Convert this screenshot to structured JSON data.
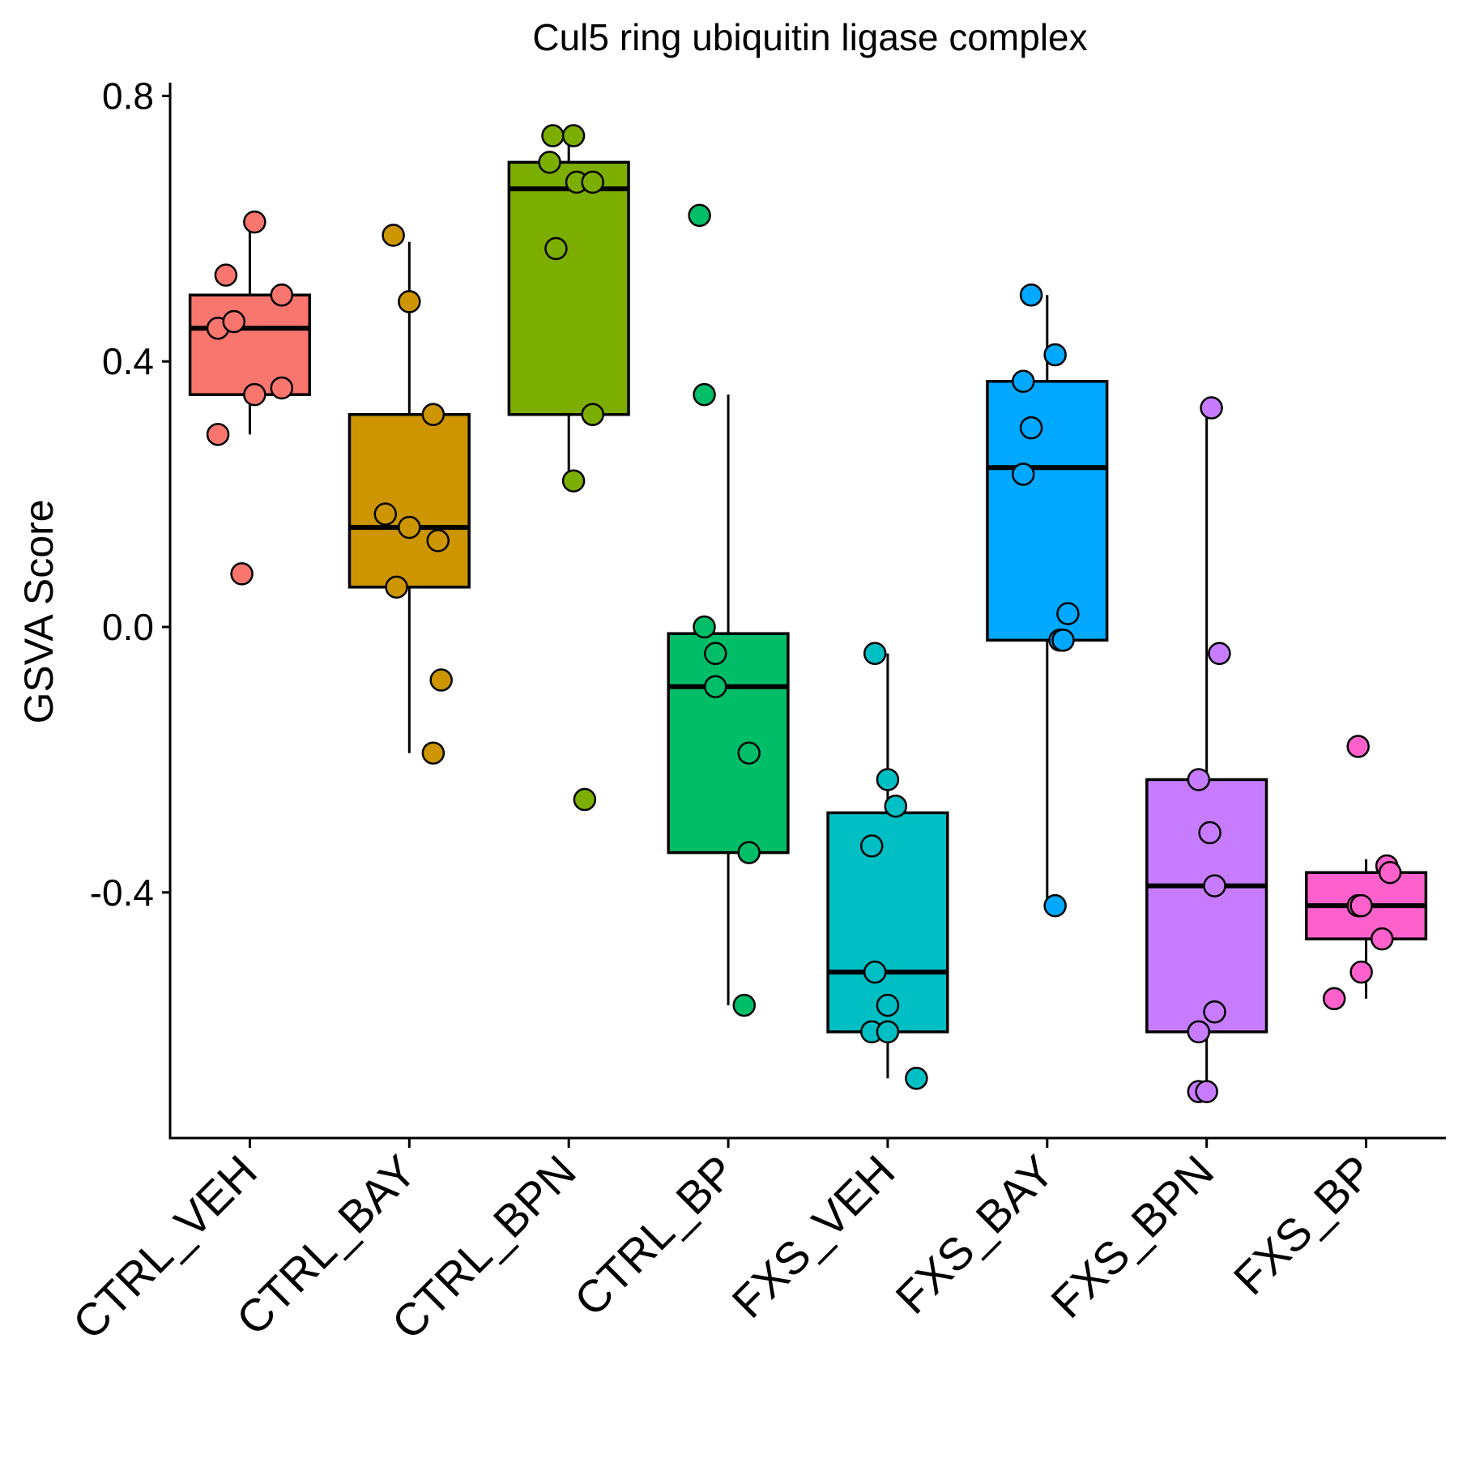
{
  "chart_data": {
    "type": "box",
    "title": "Cul5 ring ubiquitin ligase complex",
    "xlabel": "",
    "ylabel": "GSVA Score",
    "ylim": [
      -0.77,
      0.82
    ],
    "yticks": [
      -0.4,
      0.0,
      0.4,
      0.8
    ],
    "ytick_labels": [
      "-0.4",
      "0.0",
      "0.4",
      "0.8"
    ],
    "grid": false,
    "legend": "none",
    "categories": [
      "CTRL_VEH",
      "CTRL_BAY",
      "CTRL_BPN",
      "CTRL_BP",
      "FXS_VEH",
      "FXS_BAY",
      "FXS_BPN",
      "FXS_BP"
    ],
    "colors": [
      "#F8766D",
      "#CD9600",
      "#7CAE00",
      "#00BE67",
      "#00BFC4",
      "#00A9FF",
      "#C77CFF",
      "#FF61CC"
    ],
    "boxes": [
      {
        "q1": 0.35,
        "median": 0.45,
        "q3": 0.5,
        "whisker_low": 0.29,
        "whisker_high": 0.6
      },
      {
        "q1": 0.06,
        "median": 0.15,
        "q3": 0.32,
        "whisker_low": -0.19,
        "whisker_high": 0.58
      },
      {
        "q1": 0.32,
        "median": 0.66,
        "q3": 0.7,
        "whisker_low": 0.22,
        "whisker_high": 0.74
      },
      {
        "q1": -0.34,
        "median": -0.09,
        "q3": -0.01,
        "whisker_low": -0.57,
        "whisker_high": 0.35
      },
      {
        "q1": -0.61,
        "median": -0.52,
        "q3": -0.28,
        "whisker_low": -0.68,
        "whisker_high": -0.04
      },
      {
        "q1": -0.02,
        "median": 0.24,
        "q3": 0.37,
        "whisker_low": -0.42,
        "whisker_high": 0.5
      },
      {
        "q1": -0.61,
        "median": -0.39,
        "q3": -0.23,
        "whisker_low": -0.7,
        "whisker_high": 0.33
      },
      {
        "q1": -0.47,
        "median": -0.42,
        "q3": -0.37,
        "whisker_low": -0.56,
        "whisker_high": -0.35
      }
    ],
    "points": [
      {
        "offsets": [
          0.03,
          -0.15,
          0.2,
          -0.2,
          -0.1,
          -0.2,
          0.2,
          0.03,
          -0.05
        ],
        "values": [
          0.61,
          0.53,
          0.5,
          0.45,
          0.46,
          0.29,
          0.36,
          0.35,
          0.08
        ]
      },
      {
        "offsets": [
          -0.1,
          0.0,
          0.15,
          -0.15,
          0.0,
          0.18,
          -0.08,
          0.2,
          0.15
        ],
        "values": [
          0.59,
          0.49,
          0.32,
          0.17,
          0.15,
          0.13,
          0.06,
          -0.08,
          -0.19
        ]
      },
      {
        "offsets": [
          -0.1,
          0.03,
          -0.12,
          0.05,
          0.15,
          -0.08,
          0.15,
          0.03,
          0.1
        ],
        "values": [
          0.74,
          0.74,
          0.7,
          0.67,
          0.67,
          0.57,
          0.32,
          0.22,
          -0.26
        ]
      },
      {
        "offsets": [
          -0.18,
          -0.15,
          -0.15,
          -0.08,
          -0.08,
          0.13,
          0.13,
          0.1
        ],
        "values": [
          0.62,
          0.35,
          0.0,
          -0.04,
          -0.09,
          -0.19,
          -0.34,
          -0.57
        ]
      },
      {
        "offsets": [
          -0.08,
          0.0,
          0.05,
          -0.1,
          -0.08,
          0.0,
          -0.1,
          0.0,
          0.18
        ],
        "values": [
          -0.04,
          -0.23,
          -0.27,
          -0.33,
          -0.52,
          -0.57,
          -0.61,
          -0.61,
          -0.68
        ]
      },
      {
        "offsets": [
          -0.1,
          0.05,
          -0.15,
          -0.1,
          -0.15,
          0.13,
          0.08,
          0.1,
          0.05
        ],
        "values": [
          0.5,
          0.41,
          0.37,
          0.3,
          0.23,
          0.02,
          -0.02,
          -0.02,
          -0.42
        ]
      },
      {
        "offsets": [
          0.03,
          0.08,
          -0.05,
          0.02,
          0.05,
          0.05,
          -0.05,
          -0.05,
          0.0
        ],
        "values": [
          0.33,
          -0.04,
          -0.23,
          -0.31,
          -0.39,
          -0.58,
          -0.61,
          -0.7,
          -0.7
        ]
      },
      {
        "offsets": [
          -0.05,
          0.13,
          0.15,
          -0.05,
          -0.03,
          0.1,
          -0.03,
          -0.2
        ],
        "values": [
          -0.18,
          -0.36,
          -0.37,
          -0.42,
          -0.42,
          -0.47,
          -0.52,
          -0.56
        ]
      }
    ]
  }
}
